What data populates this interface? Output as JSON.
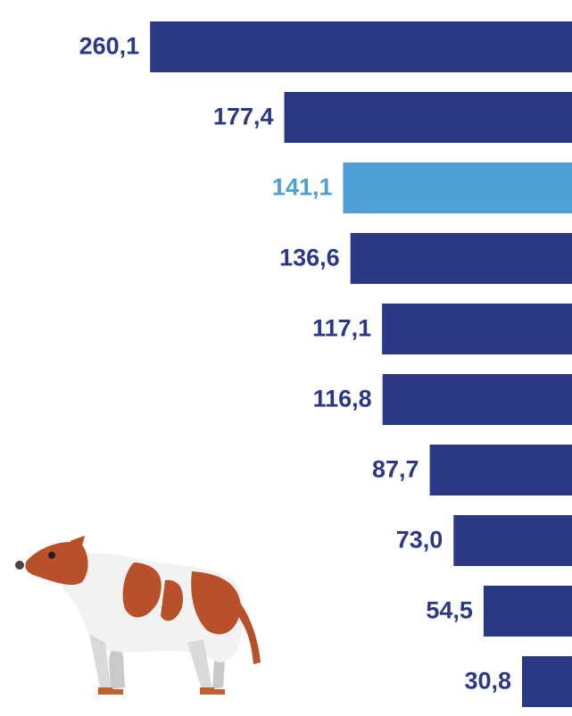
{
  "chart_data": {
    "type": "bar",
    "values": [
      260.1,
      177.4,
      141.1,
      136.6,
      117.1,
      116.8,
      87.7,
      73.0,
      54.5,
      30.8
    ],
    "value_labels": [
      "260,1",
      "177,4",
      "141,1",
      "136,6",
      "117,1",
      "116,8",
      "87,7",
      "73,0",
      "54,5",
      "30,8"
    ],
    "colors": [
      "#2b3886",
      "#2b3886",
      "#4f9fd7",
      "#2b3886",
      "#2b3886",
      "#2b3886",
      "#2b3886",
      "#2b3886",
      "#2b3886",
      "#2b3886"
    ],
    "xlim": [
      0,
      280
    ]
  }
}
